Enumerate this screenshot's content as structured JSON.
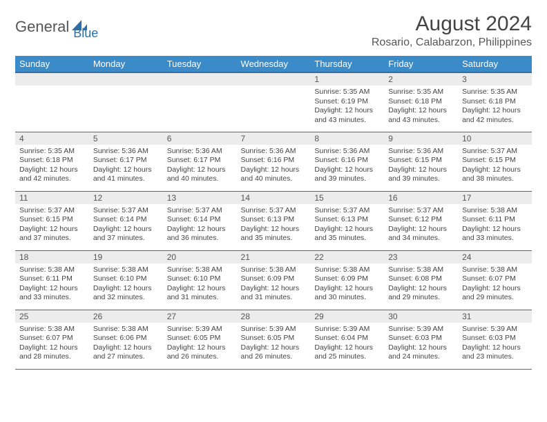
{
  "logo": {
    "part1": "General",
    "part2": "Blue"
  },
  "title": "August 2024",
  "location": "Rosario, Calabarzon, Philippines",
  "colors": {
    "header_bg": "#3b8bc9",
    "header_border": "#2f6fa8",
    "daynum_bg": "#ececec",
    "text": "#444444",
    "logo_blue": "#2f6fa8"
  },
  "day_headers": [
    "Sunday",
    "Monday",
    "Tuesday",
    "Wednesday",
    "Thursday",
    "Friday",
    "Saturday"
  ],
  "weeks": [
    [
      null,
      null,
      null,
      null,
      {
        "n": "1",
        "sr": "5:35 AM",
        "ss": "6:19 PM",
        "dl": "12 hours and 43 minutes."
      },
      {
        "n": "2",
        "sr": "5:35 AM",
        "ss": "6:18 PM",
        "dl": "12 hours and 43 minutes."
      },
      {
        "n": "3",
        "sr": "5:35 AM",
        "ss": "6:18 PM",
        "dl": "12 hours and 42 minutes."
      }
    ],
    [
      {
        "n": "4",
        "sr": "5:35 AM",
        "ss": "6:18 PM",
        "dl": "12 hours and 42 minutes."
      },
      {
        "n": "5",
        "sr": "5:36 AM",
        "ss": "6:17 PM",
        "dl": "12 hours and 41 minutes."
      },
      {
        "n": "6",
        "sr": "5:36 AM",
        "ss": "6:17 PM",
        "dl": "12 hours and 40 minutes."
      },
      {
        "n": "7",
        "sr": "5:36 AM",
        "ss": "6:16 PM",
        "dl": "12 hours and 40 minutes."
      },
      {
        "n": "8",
        "sr": "5:36 AM",
        "ss": "6:16 PM",
        "dl": "12 hours and 39 minutes."
      },
      {
        "n": "9",
        "sr": "5:36 AM",
        "ss": "6:15 PM",
        "dl": "12 hours and 39 minutes."
      },
      {
        "n": "10",
        "sr": "5:37 AM",
        "ss": "6:15 PM",
        "dl": "12 hours and 38 minutes."
      }
    ],
    [
      {
        "n": "11",
        "sr": "5:37 AM",
        "ss": "6:15 PM",
        "dl": "12 hours and 37 minutes."
      },
      {
        "n": "12",
        "sr": "5:37 AM",
        "ss": "6:14 PM",
        "dl": "12 hours and 37 minutes."
      },
      {
        "n": "13",
        "sr": "5:37 AM",
        "ss": "6:14 PM",
        "dl": "12 hours and 36 minutes."
      },
      {
        "n": "14",
        "sr": "5:37 AM",
        "ss": "6:13 PM",
        "dl": "12 hours and 35 minutes."
      },
      {
        "n": "15",
        "sr": "5:37 AM",
        "ss": "6:13 PM",
        "dl": "12 hours and 35 minutes."
      },
      {
        "n": "16",
        "sr": "5:37 AM",
        "ss": "6:12 PM",
        "dl": "12 hours and 34 minutes."
      },
      {
        "n": "17",
        "sr": "5:38 AM",
        "ss": "6:11 PM",
        "dl": "12 hours and 33 minutes."
      }
    ],
    [
      {
        "n": "18",
        "sr": "5:38 AM",
        "ss": "6:11 PM",
        "dl": "12 hours and 33 minutes."
      },
      {
        "n": "19",
        "sr": "5:38 AM",
        "ss": "6:10 PM",
        "dl": "12 hours and 32 minutes."
      },
      {
        "n": "20",
        "sr": "5:38 AM",
        "ss": "6:10 PM",
        "dl": "12 hours and 31 minutes."
      },
      {
        "n": "21",
        "sr": "5:38 AM",
        "ss": "6:09 PM",
        "dl": "12 hours and 31 minutes."
      },
      {
        "n": "22",
        "sr": "5:38 AM",
        "ss": "6:09 PM",
        "dl": "12 hours and 30 minutes."
      },
      {
        "n": "23",
        "sr": "5:38 AM",
        "ss": "6:08 PM",
        "dl": "12 hours and 29 minutes."
      },
      {
        "n": "24",
        "sr": "5:38 AM",
        "ss": "6:07 PM",
        "dl": "12 hours and 29 minutes."
      }
    ],
    [
      {
        "n": "25",
        "sr": "5:38 AM",
        "ss": "6:07 PM",
        "dl": "12 hours and 28 minutes."
      },
      {
        "n": "26",
        "sr": "5:38 AM",
        "ss": "6:06 PM",
        "dl": "12 hours and 27 minutes."
      },
      {
        "n": "27",
        "sr": "5:39 AM",
        "ss": "6:05 PM",
        "dl": "12 hours and 26 minutes."
      },
      {
        "n": "28",
        "sr": "5:39 AM",
        "ss": "6:05 PM",
        "dl": "12 hours and 26 minutes."
      },
      {
        "n": "29",
        "sr": "5:39 AM",
        "ss": "6:04 PM",
        "dl": "12 hours and 25 minutes."
      },
      {
        "n": "30",
        "sr": "5:39 AM",
        "ss": "6:03 PM",
        "dl": "12 hours and 24 minutes."
      },
      {
        "n": "31",
        "sr": "5:39 AM",
        "ss": "6:03 PM",
        "dl": "12 hours and 23 minutes."
      }
    ]
  ],
  "labels": {
    "sunrise": "Sunrise:",
    "sunset": "Sunset:",
    "daylight": "Daylight:"
  }
}
